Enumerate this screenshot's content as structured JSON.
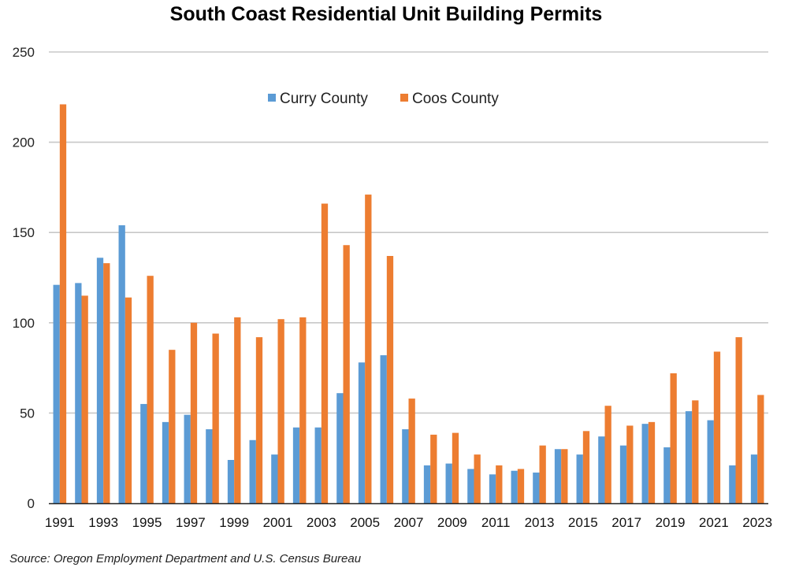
{
  "chart_data": {
    "type": "bar",
    "title": "South Coast Residential Unit Building Permits",
    "xlabel": "",
    "ylabel": "",
    "ylim": [
      0,
      250
    ],
    "yticks": [
      0,
      50,
      100,
      150,
      200,
      250
    ],
    "grid": true,
    "legend_position": "top-center",
    "categories": [
      "1991",
      "1992",
      "1993",
      "1994",
      "1995",
      "1996",
      "1997",
      "1998",
      "1999",
      "2000",
      "2001",
      "2002",
      "2003",
      "2004",
      "2005",
      "2006",
      "2007",
      "2008",
      "2009",
      "2010",
      "2011",
      "2012",
      "2013",
      "2014",
      "2015",
      "2016",
      "2017",
      "2018",
      "2019",
      "2020",
      "2021",
      "2022",
      "2023"
    ],
    "xtick_labels": [
      "1991",
      "1993",
      "1995",
      "1997",
      "1999",
      "2001",
      "2003",
      "2005",
      "2007",
      "2009",
      "2011",
      "2013",
      "2015",
      "2017",
      "2019",
      "2021",
      "2023"
    ],
    "series": [
      {
        "name": "Curry County",
        "color": "#5B9BD5",
        "values": [
          121,
          122,
          136,
          154,
          55,
          45,
          49,
          41,
          24,
          35,
          27,
          42,
          42,
          61,
          78,
          82,
          41,
          21,
          22,
          19,
          16,
          18,
          17,
          30,
          27,
          37,
          32,
          44,
          31,
          51,
          46,
          21,
          27
        ]
      },
      {
        "name": "Coos County",
        "color": "#ED7D31",
        "values": [
          221,
          115,
          133,
          114,
          126,
          85,
          100,
          94,
          103,
          92,
          102,
          103,
          166,
          143,
          171,
          137,
          58,
          38,
          39,
          27,
          21,
          19,
          32,
          30,
          40,
          54,
          43,
          45,
          72,
          57,
          84,
          92,
          60
        ]
      }
    ],
    "source": "Source: Oregon Employment Department and U.S. Census Bureau"
  }
}
